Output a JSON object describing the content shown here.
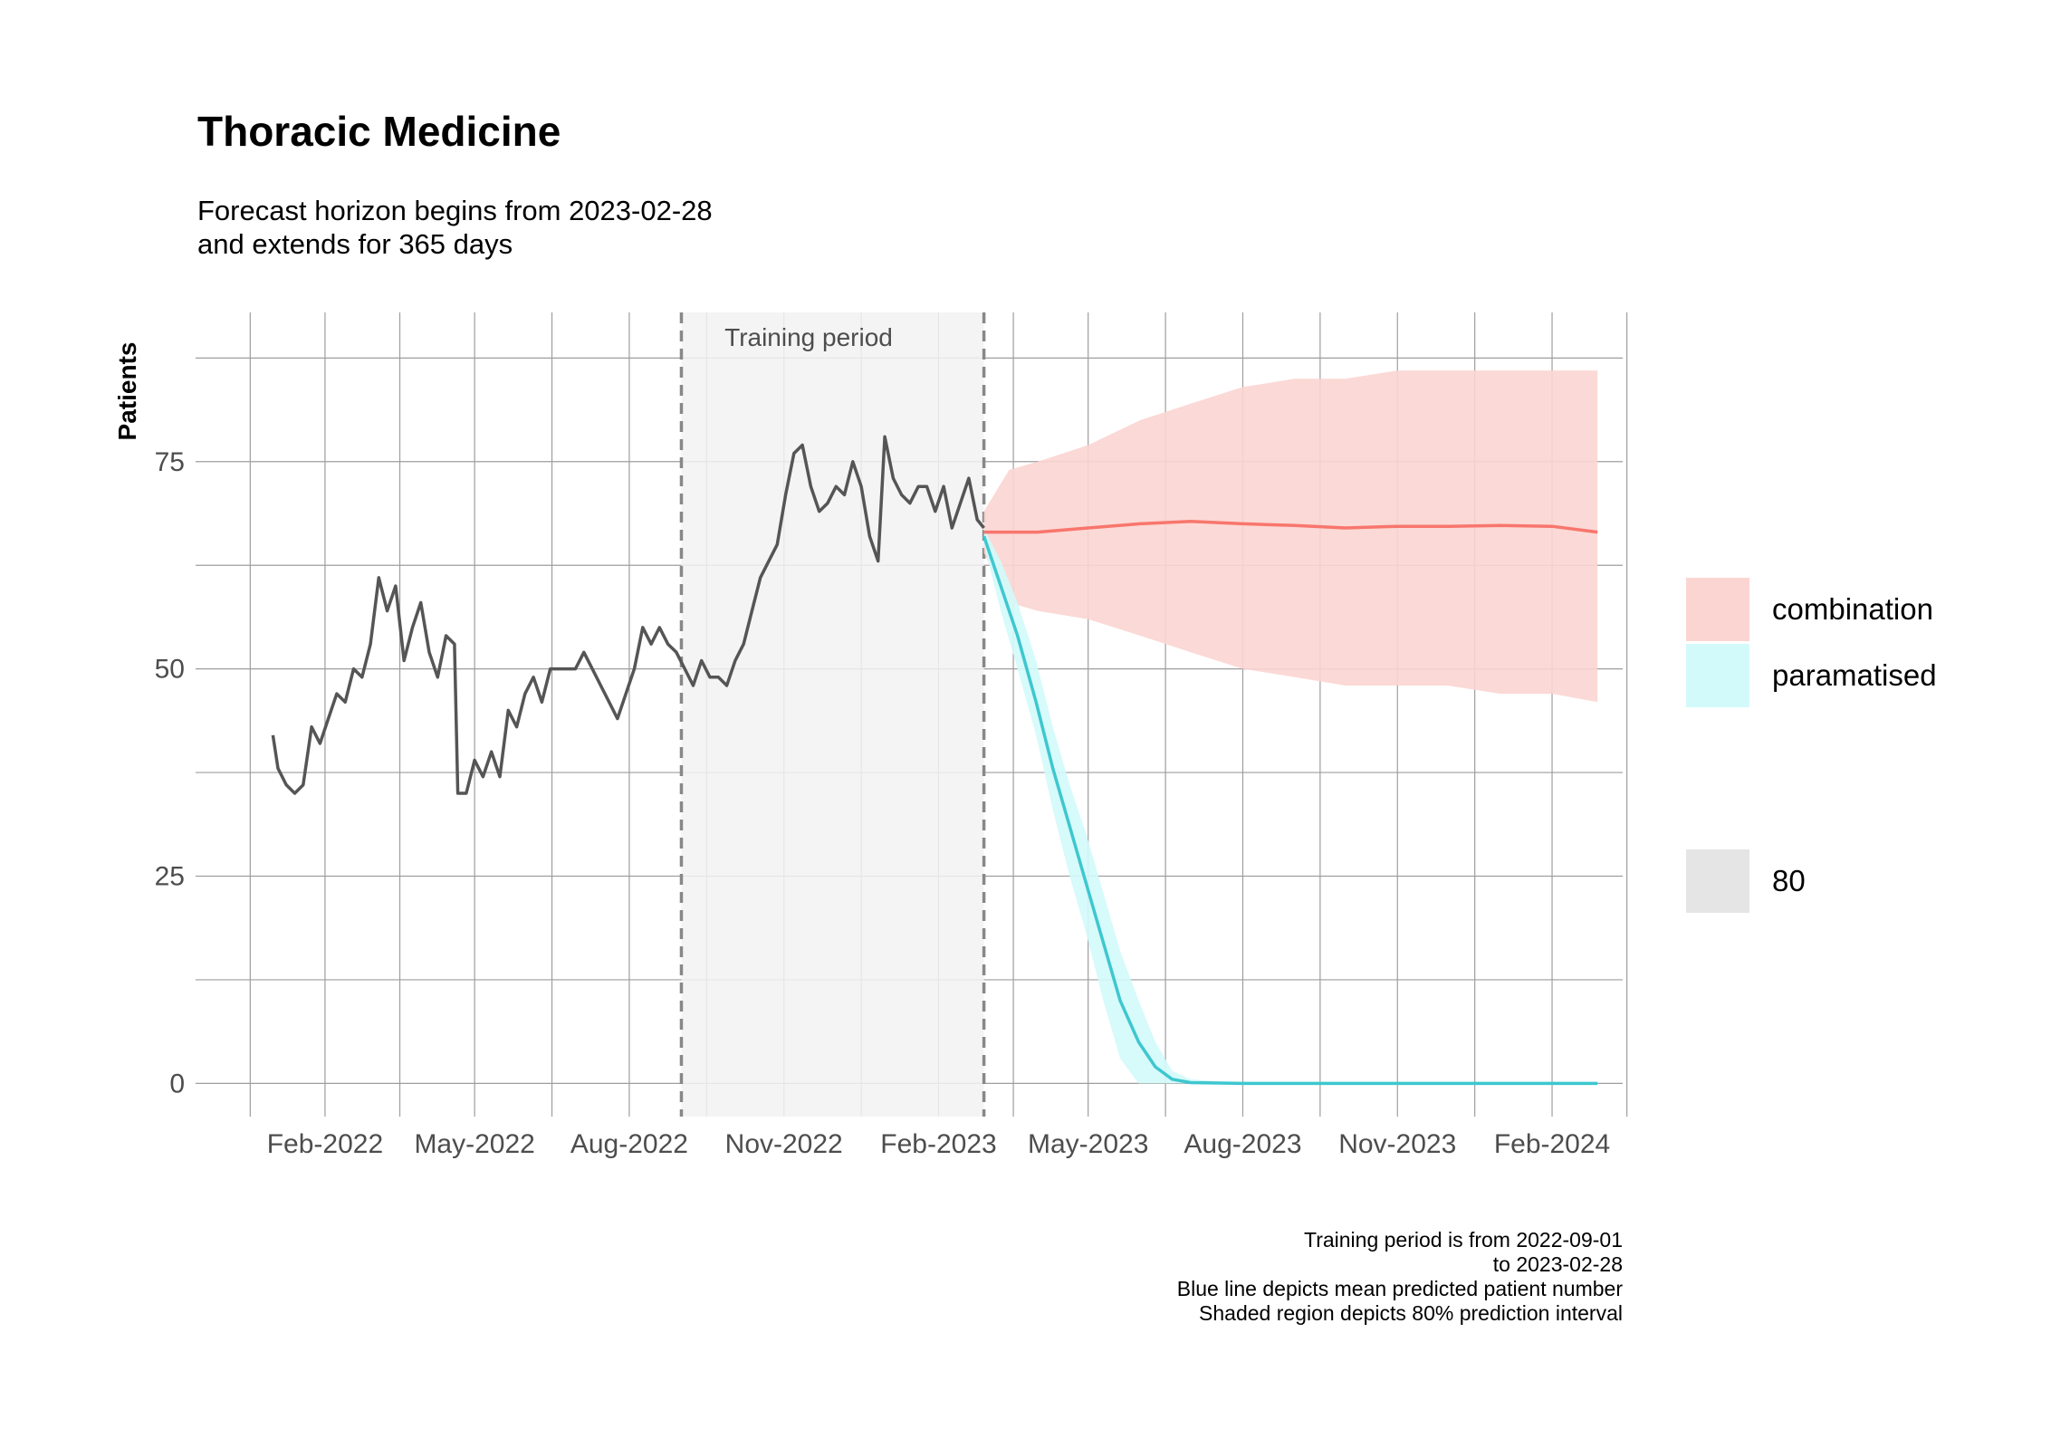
{
  "chart_data": {
    "type": "line",
    "title": "Thoracic Medicine",
    "subtitle_lines": [
      "Forecast horizon begins from 2023-02-28",
      "and extends for 365 days"
    ],
    "ylabel": "Patients",
    "xlabel": "",
    "ylim": [
      -4,
      93
    ],
    "xlim": [
      "2021-11-16",
      "2024-03-14"
    ],
    "y_ticks": [
      0,
      25,
      50,
      75
    ],
    "x_ticks": [
      {
        "date": "2022-02-01",
        "label": "Feb-2022"
      },
      {
        "date": "2022-05-01",
        "label": "May-2022"
      },
      {
        "date": "2022-08-01",
        "label": "Aug-2022"
      },
      {
        "date": "2022-11-01",
        "label": "Nov-2022"
      },
      {
        "date": "2023-02-01",
        "label": "Feb-2023"
      },
      {
        "date": "2023-05-01",
        "label": "May-2023"
      },
      {
        "date": "2023-08-01",
        "label": "Aug-2023"
      },
      {
        "date": "2023-11-01",
        "label": "Nov-2023"
      },
      {
        "date": "2024-02-01",
        "label": "Feb-2024"
      }
    ],
    "grid": true,
    "training_period": {
      "start": "2022-09-01",
      "end": "2023-02-28",
      "label": "Training period"
    },
    "observed": {
      "color": "#555555",
      "points": [
        [
          "2022-01-01",
          42
        ],
        [
          "2022-01-04",
          38
        ],
        [
          "2022-01-09",
          36
        ],
        [
          "2022-01-14",
          35
        ],
        [
          "2022-01-19",
          36
        ],
        [
          "2022-01-24",
          43
        ],
        [
          "2022-01-29",
          41
        ],
        [
          "2022-02-03",
          44
        ],
        [
          "2022-02-08",
          47
        ],
        [
          "2022-02-13",
          46
        ],
        [
          "2022-02-18",
          50
        ],
        [
          "2022-02-23",
          49
        ],
        [
          "2022-02-28",
          53
        ],
        [
          "2022-03-05",
          61
        ],
        [
          "2022-03-10",
          57
        ],
        [
          "2022-03-15",
          60
        ],
        [
          "2022-03-20",
          51
        ],
        [
          "2022-03-25",
          55
        ],
        [
          "2022-03-30",
          58
        ],
        [
          "2022-04-04",
          52
        ],
        [
          "2022-04-09",
          49
        ],
        [
          "2022-04-14",
          54
        ],
        [
          "2022-04-19",
          53
        ],
        [
          "2022-04-21",
          35
        ],
        [
          "2022-04-26",
          35
        ],
        [
          "2022-05-01",
          39
        ],
        [
          "2022-05-06",
          37
        ],
        [
          "2022-05-11",
          40
        ],
        [
          "2022-05-16",
          37
        ],
        [
          "2022-05-21",
          45
        ],
        [
          "2022-05-26",
          43
        ],
        [
          "2022-05-31",
          47
        ],
        [
          "2022-06-05",
          49
        ],
        [
          "2022-06-10",
          46
        ],
        [
          "2022-06-15",
          50
        ],
        [
          "2022-06-20",
          50
        ],
        [
          "2022-06-25",
          50
        ],
        [
          "2022-06-30",
          50
        ],
        [
          "2022-07-05",
          52
        ],
        [
          "2022-07-10",
          50
        ],
        [
          "2022-07-15",
          48
        ],
        [
          "2022-07-20",
          46
        ],
        [
          "2022-07-25",
          44
        ],
        [
          "2022-07-30",
          47
        ],
        [
          "2022-08-04",
          50
        ],
        [
          "2022-08-09",
          55
        ],
        [
          "2022-08-14",
          53
        ],
        [
          "2022-08-19",
          55
        ],
        [
          "2022-08-24",
          53
        ],
        [
          "2022-08-29",
          52
        ],
        [
          "2022-09-03",
          50
        ],
        [
          "2022-09-08",
          48
        ],
        [
          "2022-09-13",
          51
        ],
        [
          "2022-09-18",
          49
        ],
        [
          "2022-09-23",
          49
        ],
        [
          "2022-09-28",
          48
        ],
        [
          "2022-10-03",
          51
        ],
        [
          "2022-10-08",
          53
        ],
        [
          "2022-10-13",
          57
        ],
        [
          "2022-10-18",
          61
        ],
        [
          "2022-10-23",
          63
        ],
        [
          "2022-10-28",
          65
        ],
        [
          "2022-11-02",
          71
        ],
        [
          "2022-11-07",
          76
        ],
        [
          "2022-11-12",
          77
        ],
        [
          "2022-11-17",
          72
        ],
        [
          "2022-11-22",
          69
        ],
        [
          "2022-11-27",
          70
        ],
        [
          "2022-12-02",
          72
        ],
        [
          "2022-12-07",
          71
        ],
        [
          "2022-12-12",
          75
        ],
        [
          "2022-12-17",
          72
        ],
        [
          "2022-12-22",
          66
        ],
        [
          "2022-12-27",
          63
        ],
        [
          "2022-12-31",
          78
        ],
        [
          "2023-01-05",
          73
        ],
        [
          "2023-01-10",
          71
        ],
        [
          "2023-01-15",
          70
        ],
        [
          "2023-01-20",
          72
        ],
        [
          "2023-01-25",
          72
        ],
        [
          "2023-01-30",
          69
        ],
        [
          "2023-02-04",
          72
        ],
        [
          "2023-02-09",
          67
        ],
        [
          "2023-02-14",
          70
        ],
        [
          "2023-02-19",
          73
        ],
        [
          "2023-02-24",
          68
        ],
        [
          "2023-02-28",
          67
        ]
      ]
    },
    "series": [
      {
        "name": "combination",
        "color": "#f8766d",
        "fill": "#fbd5d2",
        "mean": [
          [
            "2023-02-28",
            66.5
          ],
          [
            "2023-04-01",
            66.5
          ],
          [
            "2023-05-01",
            67.0
          ],
          [
            "2023-06-01",
            67.5
          ],
          [
            "2023-07-01",
            67.8
          ],
          [
            "2023-08-01",
            67.5
          ],
          [
            "2023-09-01",
            67.3
          ],
          [
            "2023-10-01",
            67.0
          ],
          [
            "2023-11-01",
            67.2
          ],
          [
            "2023-12-01",
            67.2
          ],
          [
            "2024-01-01",
            67.3
          ],
          [
            "2024-02-01",
            67.2
          ],
          [
            "2024-02-28",
            66.5
          ]
        ],
        "interval_80": [
          [
            "2023-02-28",
            64,
            69
          ],
          [
            "2023-03-15",
            58,
            74
          ],
          [
            "2023-04-01",
            57,
            75
          ],
          [
            "2023-05-01",
            56,
            77
          ],
          [
            "2023-06-01",
            54,
            80
          ],
          [
            "2023-07-01",
            52,
            82
          ],
          [
            "2023-08-01",
            50,
            84
          ],
          [
            "2023-09-01",
            49,
            85
          ],
          [
            "2023-10-01",
            48,
            85
          ],
          [
            "2023-11-01",
            48,
            86
          ],
          [
            "2023-12-01",
            48,
            86
          ],
          [
            "2024-01-01",
            47,
            86
          ],
          [
            "2024-02-01",
            47,
            86
          ],
          [
            "2024-02-28",
            46,
            86
          ]
        ]
      },
      {
        "name": "paramatised",
        "color": "#3ec7cf",
        "fill": "#d3fafb",
        "mean": [
          [
            "2023-02-28",
            66
          ],
          [
            "2023-03-10",
            60
          ],
          [
            "2023-03-20",
            54
          ],
          [
            "2023-03-31",
            46
          ],
          [
            "2023-04-10",
            38
          ],
          [
            "2023-04-20",
            31
          ],
          [
            "2023-04-30",
            24
          ],
          [
            "2023-05-10",
            17
          ],
          [
            "2023-05-20",
            10
          ],
          [
            "2023-05-31",
            5
          ],
          [
            "2023-06-10",
            2
          ],
          [
            "2023-06-20",
            0.5
          ],
          [
            "2023-07-01",
            0.1
          ],
          [
            "2023-08-01",
            0
          ],
          [
            "2024-02-28",
            0
          ]
        ],
        "interval_80": [
          [
            "2023-02-28",
            65,
            67
          ],
          [
            "2023-03-10",
            57,
            63
          ],
          [
            "2023-03-20",
            50,
            58
          ],
          [
            "2023-03-31",
            42,
            51
          ],
          [
            "2023-04-10",
            33,
            43
          ],
          [
            "2023-04-20",
            25,
            36
          ],
          [
            "2023-04-30",
            18,
            30
          ],
          [
            "2023-05-10",
            10,
            23
          ],
          [
            "2023-05-20",
            3,
            16
          ],
          [
            "2023-05-31",
            0,
            10
          ],
          [
            "2023-06-10",
            0,
            5
          ],
          [
            "2023-06-20",
            0,
            1.5
          ],
          [
            "2023-07-01",
            0,
            0.5
          ],
          [
            "2023-08-01",
            0,
            0
          ],
          [
            "2024-02-28",
            0,
            0
          ]
        ]
      }
    ],
    "legend": {
      "position": "right",
      "entries": [
        {
          "label": "combination",
          "color": "#fbd5d2"
        },
        {
          "label": "paramatised",
          "color": "#d3fafb"
        }
      ],
      "level_entries": [
        {
          "label": "80",
          "color": "#e5e5e5"
        }
      ]
    },
    "caption_lines": [
      "Training period is from 2022-09-01",
      "to 2023-02-28",
      "Blue line depicts mean predicted patient number",
      "Shaded region depicts 80% prediction interval"
    ],
    "colors": {
      "grid": "#9e9e9e",
      "training_fill": "#f2f2f2",
      "training_border": "#888888"
    }
  }
}
